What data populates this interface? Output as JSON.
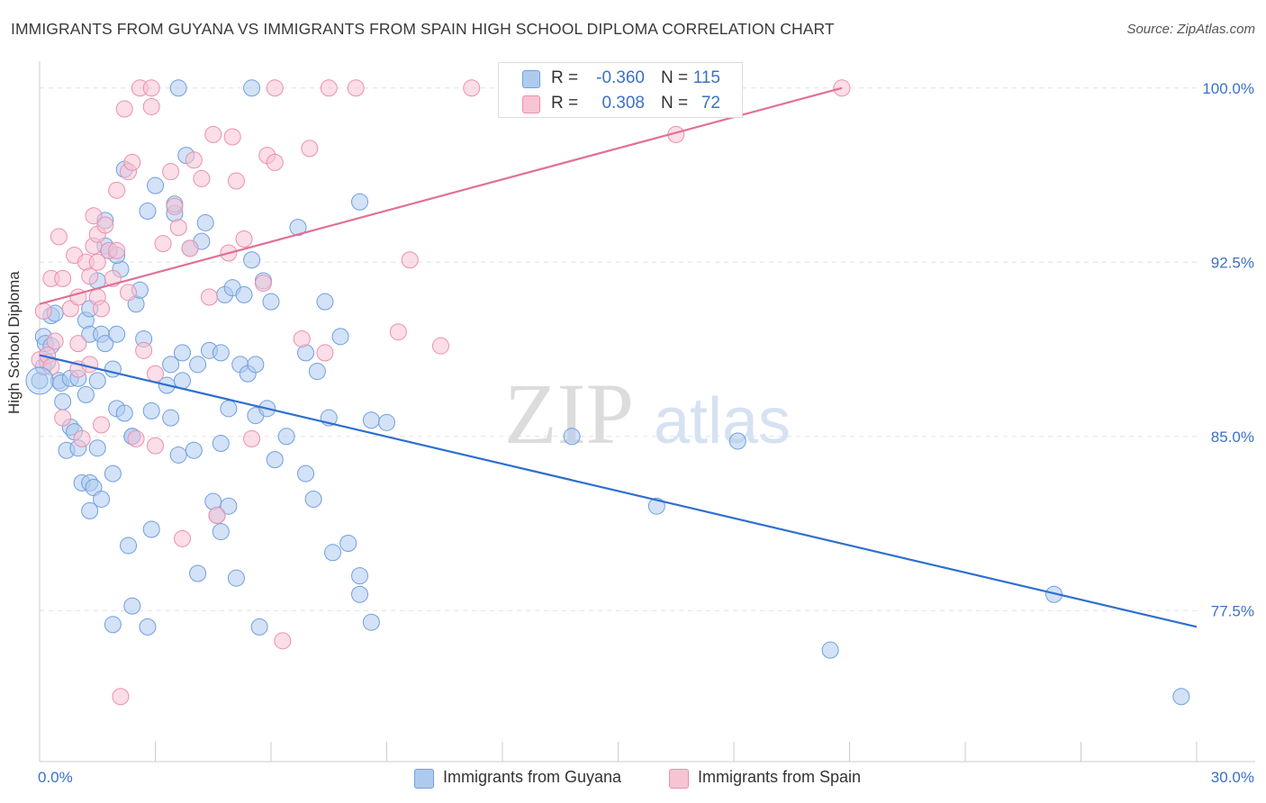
{
  "title": "IMMIGRANTS FROM GUYANA VS IMMIGRANTS FROM SPAIN HIGH SCHOOL DIPLOMA CORRELATION CHART",
  "source": "Source: ZipAtlas.com",
  "watermark": {
    "zip": "ZIP",
    "atlas": "atlas"
  },
  "stats": {
    "r_label": "R =",
    "n_label": "N =",
    "rows": [
      {
        "r": "-0.360",
        "n": "115",
        "fill": "#aecbef",
        "stroke": "#6f9fe0"
      },
      {
        "r": "0.308",
        "n": "72",
        "fill": "#f8c3d3",
        "stroke": "#ec8fae"
      }
    ]
  },
  "chart_data": {
    "type": "scatter",
    "xlabel": "",
    "ylabel": "High School Diploma",
    "xlim": [
      0.0,
      30.0
    ],
    "ylim": [
      71.0,
      101.0
    ],
    "x_tick_labels": [
      {
        "value": 0,
        "label": "0.0%"
      },
      {
        "value": 30,
        "label": "30.0%"
      }
    ],
    "y_ticks": [
      {
        "value": 77.5,
        "label": "77.5%"
      },
      {
        "value": 85,
        "label": "85.0%"
      },
      {
        "value": 92.5,
        "label": "92.5%"
      },
      {
        "value": 100,
        "label": "100.0%"
      }
    ],
    "grid": "horizontal-dashed",
    "series": [
      {
        "name": "Immigrants from Guyana",
        "color": "#6f9fe0",
        "fill": "#aecbef",
        "line_color": "#2f6fcf",
        "trend": [
          [
            0.0,
            88.5
          ],
          [
            30.0,
            76.8
          ]
        ],
        "points": [
          [
            0.0,
            87.4
          ],
          [
            0.1,
            88.0
          ],
          [
            0.1,
            89.3
          ],
          [
            0.15,
            89.0
          ],
          [
            0.2,
            88.2
          ],
          [
            0.3,
            88.9
          ],
          [
            0.3,
            90.2
          ],
          [
            0.4,
            90.3
          ],
          [
            0.5,
            87.4
          ],
          [
            0.6,
            86.5
          ],
          [
            0.55,
            87.3
          ],
          [
            0.7,
            84.4
          ],
          [
            0.8,
            87.5
          ],
          [
            0.8,
            85.4
          ],
          [
            0.9,
            85.2
          ],
          [
            1.0,
            87.5
          ],
          [
            1.0,
            84.5
          ],
          [
            1.1,
            83.0
          ],
          [
            1.2,
            86.8
          ],
          [
            1.3,
            81.8
          ],
          [
            1.3,
            83.0
          ],
          [
            1.4,
            82.8
          ],
          [
            1.5,
            84.5
          ],
          [
            1.6,
            82.3
          ],
          [
            1.2,
            90.0
          ],
          [
            1.3,
            89.4
          ],
          [
            1.3,
            90.5
          ],
          [
            1.5,
            91.7
          ],
          [
            1.6,
            89.4
          ],
          [
            1.5,
            87.4
          ],
          [
            1.7,
            89.0
          ],
          [
            1.7,
            93.2
          ],
          [
            1.7,
            94.3
          ],
          [
            1.8,
            93.0
          ],
          [
            1.9,
            83.4
          ],
          [
            1.9,
            87.9
          ],
          [
            1.9,
            76.9
          ],
          [
            2.0,
            86.2
          ],
          [
            2.0,
            89.4
          ],
          [
            2.1,
            92.2
          ],
          [
            2.2,
            96.5
          ],
          [
            2.2,
            86.0
          ],
          [
            2.0,
            92.8
          ],
          [
            2.3,
            80.3
          ],
          [
            2.4,
            77.7
          ],
          [
            2.4,
            85.0
          ],
          [
            2.5,
            90.7
          ],
          [
            2.6,
            91.3
          ],
          [
            2.4,
            85.0
          ],
          [
            2.7,
            89.2
          ],
          [
            2.8,
            76.8
          ],
          [
            2.9,
            86.1
          ],
          [
            2.9,
            81.0
          ],
          [
            2.8,
            94.7
          ],
          [
            3.0,
            95.8
          ],
          [
            3.3,
            87.2
          ],
          [
            3.4,
            85.8
          ],
          [
            3.4,
            88.1
          ],
          [
            3.5,
            94.6
          ],
          [
            3.5,
            95.0
          ],
          [
            3.6,
            84.2
          ],
          [
            3.7,
            88.6
          ],
          [
            3.7,
            87.4
          ],
          [
            3.8,
            97.1
          ],
          [
            3.9,
            93.1
          ],
          [
            4.0,
            84.4
          ],
          [
            4.1,
            88.1
          ],
          [
            4.1,
            79.1
          ],
          [
            4.2,
            93.4
          ],
          [
            4.3,
            94.2
          ],
          [
            4.4,
            88.7
          ],
          [
            4.5,
            82.2
          ],
          [
            4.6,
            81.6
          ],
          [
            4.7,
            88.6
          ],
          [
            4.7,
            84.7
          ],
          [
            4.7,
            80.9
          ],
          [
            4.8,
            91.1
          ],
          [
            4.9,
            86.2
          ],
          [
            4.9,
            82.0
          ],
          [
            5.0,
            91.4
          ],
          [
            5.1,
            78.9
          ],
          [
            5.3,
            91.1
          ],
          [
            5.2,
            88.1
          ],
          [
            5.4,
            87.7
          ],
          [
            5.5,
            92.6
          ],
          [
            5.6,
            88.1
          ],
          [
            5.6,
            85.9
          ],
          [
            5.7,
            76.8
          ],
          [
            5.8,
            91.7
          ],
          [
            5.9,
            86.2
          ],
          [
            6.0,
            90.8
          ],
          [
            6.1,
            84.0
          ],
          [
            6.4,
            85.0
          ],
          [
            6.7,
            94.0
          ],
          [
            6.9,
            83.4
          ],
          [
            6.9,
            88.6
          ],
          [
            7.1,
            82.3
          ],
          [
            7.2,
            87.8
          ],
          [
            7.4,
            90.8
          ],
          [
            7.5,
            85.8
          ],
          [
            7.6,
            80.0
          ],
          [
            7.8,
            89.3
          ],
          [
            8.0,
            80.4
          ],
          [
            8.3,
            95.1
          ],
          [
            8.3,
            79.0
          ],
          [
            8.3,
            78.2
          ],
          [
            8.6,
            77.0
          ],
          [
            8.6,
            85.7
          ],
          [
            9.0,
            85.6
          ],
          [
            3.6,
            100.0
          ],
          [
            5.5,
            100.0
          ],
          [
            13.8,
            85.0
          ],
          [
            16.0,
            82.0
          ],
          [
            18.1,
            84.8
          ],
          [
            20.5,
            75.8
          ],
          [
            26.3,
            78.2
          ],
          [
            29.6,
            73.8
          ]
        ]
      },
      {
        "name": "Immigrants from Spain",
        "color": "#ec8fae",
        "fill": "#f8c3d3",
        "line_color": "#e07098",
        "trend": [
          [
            0.0,
            90.7
          ],
          [
            20.8,
            100.0
          ]
        ],
        "points": [
          [
            0.0,
            88.3
          ],
          [
            0.1,
            90.4
          ],
          [
            0.2,
            88.5
          ],
          [
            0.3,
            88.0
          ],
          [
            0.3,
            91.8
          ],
          [
            0.4,
            89.1
          ],
          [
            0.5,
            93.6
          ],
          [
            0.6,
            91.8
          ],
          [
            0.6,
            85.8
          ],
          [
            0.8,
            90.5
          ],
          [
            0.9,
            92.8
          ],
          [
            1.0,
            89.0
          ],
          [
            1.0,
            87.9
          ],
          [
            1.0,
            91.0
          ],
          [
            1.1,
            84.9
          ],
          [
            1.2,
            92.5
          ],
          [
            1.3,
            91.9
          ],
          [
            1.3,
            88.1
          ],
          [
            1.4,
            93.2
          ],
          [
            1.4,
            94.5
          ],
          [
            1.5,
            92.5
          ],
          [
            1.5,
            93.7
          ],
          [
            1.5,
            91.0
          ],
          [
            1.6,
            90.5
          ],
          [
            1.6,
            85.5
          ],
          [
            1.7,
            94.1
          ],
          [
            1.8,
            93.0
          ],
          [
            1.9,
            91.8
          ],
          [
            2.0,
            95.6
          ],
          [
            2.0,
            93.0
          ],
          [
            2.1,
            73.8
          ],
          [
            2.2,
            99.1
          ],
          [
            2.3,
            91.2
          ],
          [
            2.3,
            96.4
          ],
          [
            2.4,
            96.8
          ],
          [
            2.5,
            84.9
          ],
          [
            2.6,
            100.0
          ],
          [
            2.7,
            88.7
          ],
          [
            2.9,
            99.2
          ],
          [
            2.9,
            100.0
          ],
          [
            3.0,
            87.7
          ],
          [
            3.0,
            84.6
          ],
          [
            3.2,
            93.3
          ],
          [
            3.4,
            96.4
          ],
          [
            3.5,
            94.9
          ],
          [
            3.6,
            94.0
          ],
          [
            3.7,
            80.6
          ],
          [
            3.9,
            93.1
          ],
          [
            4.0,
            96.9
          ],
          [
            4.2,
            96.1
          ],
          [
            4.4,
            91.0
          ],
          [
            4.5,
            98.0
          ],
          [
            4.6,
            81.6
          ],
          [
            4.9,
            92.9
          ],
          [
            5.0,
            97.9
          ],
          [
            5.1,
            96.0
          ],
          [
            5.3,
            93.5
          ],
          [
            5.5,
            84.9
          ],
          [
            5.8,
            91.6
          ],
          [
            5.9,
            97.1
          ],
          [
            6.1,
            96.8
          ],
          [
            6.1,
            100.0
          ],
          [
            6.3,
            76.2
          ],
          [
            6.8,
            89.2
          ],
          [
            7.0,
            97.4
          ],
          [
            7.4,
            88.6
          ],
          [
            7.5,
            100.0
          ],
          [
            8.2,
            100.0
          ],
          [
            9.3,
            89.5
          ],
          [
            9.6,
            92.6
          ],
          [
            10.4,
            88.9
          ],
          [
            11.2,
            100.0
          ],
          [
            12.8,
            100.0
          ],
          [
            16.5,
            98.0
          ],
          [
            20.8,
            100.0
          ]
        ]
      }
    ]
  }
}
